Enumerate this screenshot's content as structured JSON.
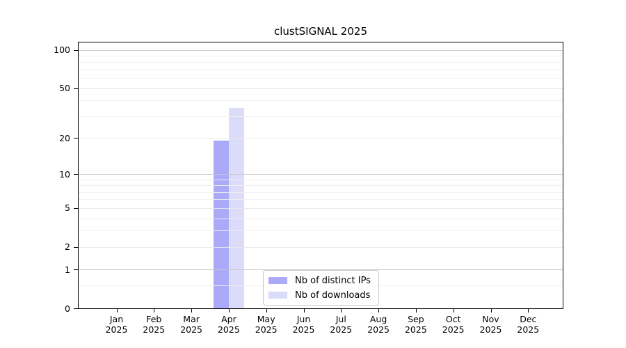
{
  "chart_data": {
    "type": "bar",
    "title": "clustSIGNAL 2025",
    "categories": [
      "Jan 2025",
      "Feb 2025",
      "Mar 2025",
      "Apr 2025",
      "May 2025",
      "Jun 2025",
      "Jul 2025",
      "Aug 2025",
      "Sep 2025",
      "Oct 2025",
      "Nov 2025",
      "Dec 2025"
    ],
    "series": [
      {
        "name": "Nb of distinct IPs",
        "color": "#aaaaf9",
        "values": [
          0,
          0,
          0,
          19,
          0,
          0,
          0,
          0,
          0,
          0,
          0,
          0
        ]
      },
      {
        "name": "Nb of downloads",
        "color": "#dbdbfa",
        "values": [
          0,
          0,
          0,
          35,
          0,
          0,
          0,
          0,
          0,
          0,
          0,
          0
        ]
      }
    ],
    "xlabel": "",
    "ylabel": "",
    "y_scale": "log10(v+1)",
    "y_ticks": [
      0,
      1,
      2,
      5,
      10,
      20,
      50,
      100
    ],
    "minor_gridlines": [
      0.5,
      3,
      4,
      6,
      7,
      8,
      9,
      30,
      40,
      60,
      70,
      80,
      90
    ],
    "ylim": [
      0,
      114.3
    ],
    "grid": "horizontal",
    "legend_position": "bottom-center",
    "colors": {
      "decade_grid": "#c8c8c8",
      "labeled_grid": "#e8e8e8",
      "minor_grid": "#f0f0f0",
      "frame": "#000000",
      "background": "#ffffff"
    }
  }
}
